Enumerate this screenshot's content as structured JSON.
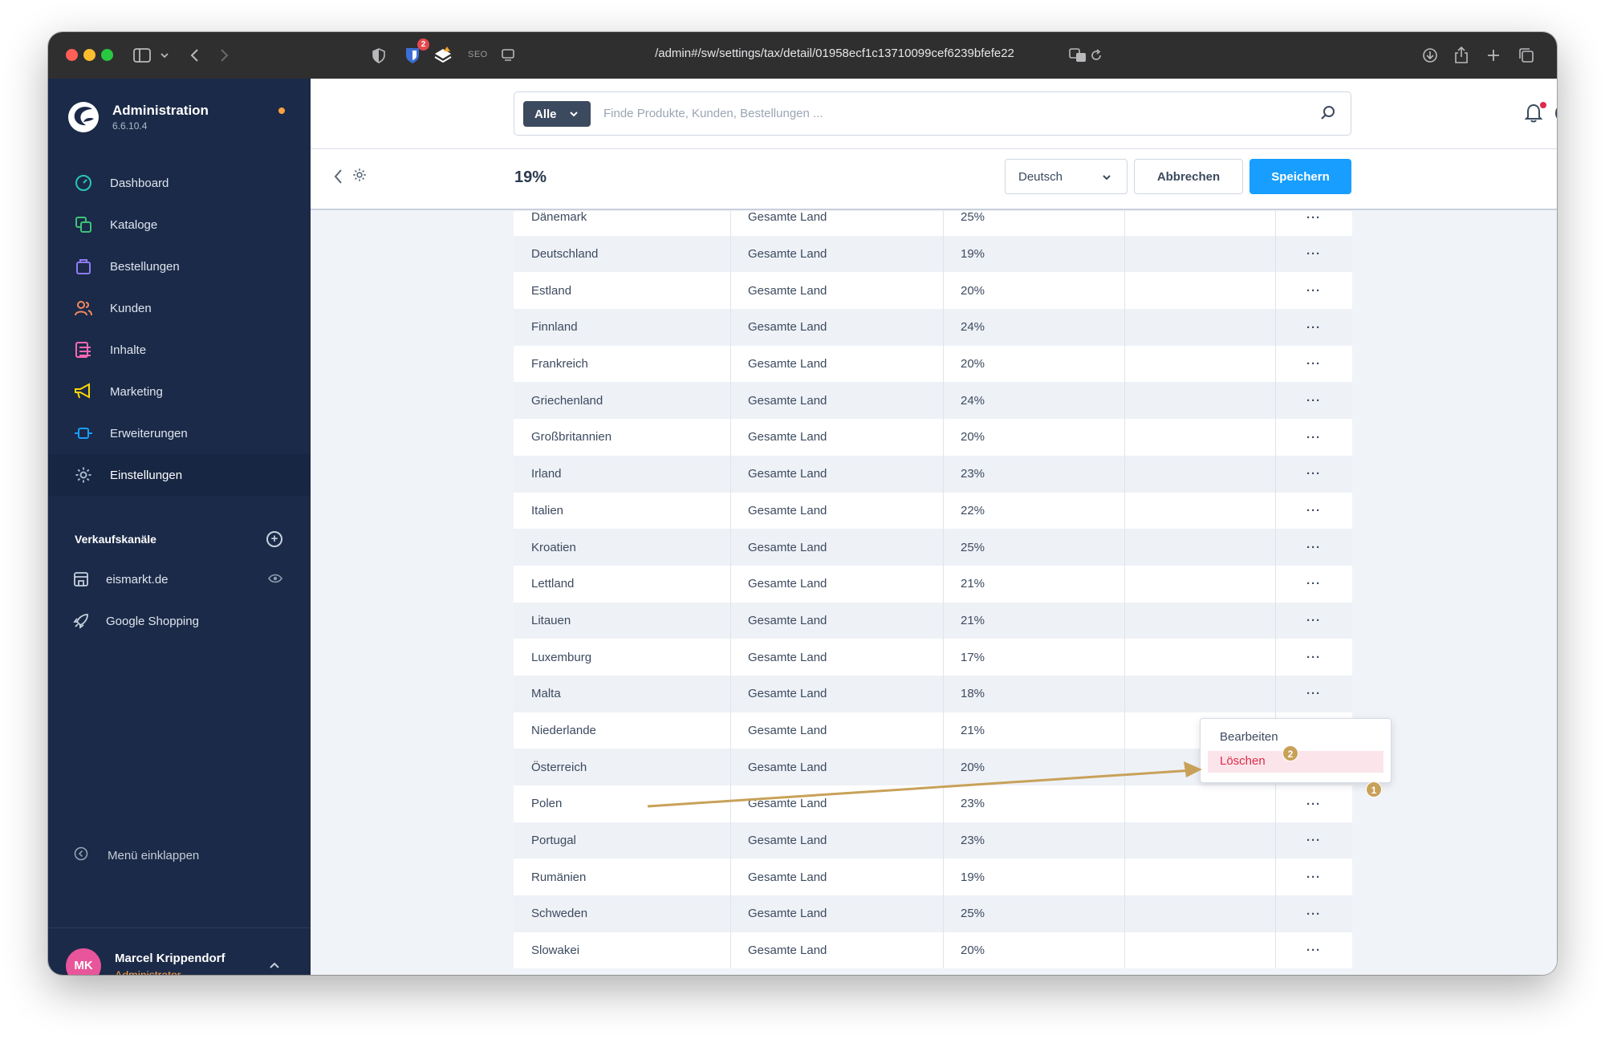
{
  "browser": {
    "url": "/admin#/sw/settings/tax/detail/01958ecf1c13710099cef6239bfefe22",
    "seo_label": "SEO",
    "extension_badge": "2"
  },
  "sidebar": {
    "brand_title": "Administration",
    "brand_version": "6.6.10.4",
    "items": [
      {
        "label": "Dashboard",
        "icon": "dashboard-icon"
      },
      {
        "label": "Kataloge",
        "icon": "catalog-icon"
      },
      {
        "label": "Bestellungen",
        "icon": "shopping-bag-icon"
      },
      {
        "label": "Kunden",
        "icon": "users-icon"
      },
      {
        "label": "Inhalte",
        "icon": "content-icon"
      },
      {
        "label": "Marketing",
        "icon": "megaphone-icon"
      },
      {
        "label": "Erweiterungen",
        "icon": "plug-icon"
      },
      {
        "label": "Einstellungen",
        "icon": "gear-icon",
        "active": true
      }
    ],
    "sales_channels_title": "Verkaufskanäle",
    "channels": [
      {
        "label": "eismarkt.de",
        "icon": "storefront-icon"
      },
      {
        "label": "Google Shopping",
        "icon": "rocket-icon"
      }
    ],
    "collapse_label": "Menü einklappen",
    "user": {
      "initials": "MK",
      "name": "Marcel Krippendorf",
      "role": "Administrator"
    }
  },
  "header": {
    "search_type": "Alle",
    "search_placeholder": "Finde Produkte, Kunden, Bestellungen ..."
  },
  "smartbar": {
    "title": "19%",
    "language": "Deutsch",
    "cancel_label": "Abbrechen",
    "save_label": "Speichern"
  },
  "tax_rules": [
    {
      "country": "Dänemark",
      "area": "Gesamte Land",
      "rate": "25%"
    },
    {
      "country": "Deutschland",
      "area": "Gesamte Land",
      "rate": "19%"
    },
    {
      "country": "Estland",
      "area": "Gesamte Land",
      "rate": "20%"
    },
    {
      "country": "Finnland",
      "area": "Gesamte Land",
      "rate": "24%"
    },
    {
      "country": "Frankreich",
      "area": "Gesamte Land",
      "rate": "20%"
    },
    {
      "country": "Griechenland",
      "area": "Gesamte Land",
      "rate": "24%"
    },
    {
      "country": "Großbritannien",
      "area": "Gesamte Land",
      "rate": "20%"
    },
    {
      "country": "Irland",
      "area": "Gesamte Land",
      "rate": "23%"
    },
    {
      "country": "Italien",
      "area": "Gesamte Land",
      "rate": "22%"
    },
    {
      "country": "Kroatien",
      "area": "Gesamte Land",
      "rate": "25%"
    },
    {
      "country": "Lettland",
      "area": "Gesamte Land",
      "rate": "21%"
    },
    {
      "country": "Litauen",
      "area": "Gesamte Land",
      "rate": "21%"
    },
    {
      "country": "Luxemburg",
      "area": "Gesamte Land",
      "rate": "17%"
    },
    {
      "country": "Malta",
      "area": "Gesamte Land",
      "rate": "18%"
    },
    {
      "country": "Niederlande",
      "area": "Gesamte Land",
      "rate": "21%"
    },
    {
      "country": "Österreich",
      "area": "Gesamte Land",
      "rate": "20%",
      "menu_open": true
    },
    {
      "country": "Polen",
      "area": "Gesamte Land",
      "rate": "23%"
    },
    {
      "country": "Portugal",
      "area": "Gesamte Land",
      "rate": "23%"
    },
    {
      "country": "Rumänien",
      "area": "Gesamte Land",
      "rate": "19%"
    },
    {
      "country": "Schweden",
      "area": "Gesamte Land",
      "rate": "25%"
    },
    {
      "country": "Slowakei",
      "area": "Gesamte Land",
      "rate": "20%"
    }
  ],
  "row_action_label": "···",
  "context_menu": {
    "edit_label": "Bearbeiten",
    "delete_label": "Löschen"
  },
  "annotations": {
    "step_1": "1",
    "step_2": "2",
    "color": "#c8a159"
  },
  "colors": {
    "sidebar_bg": "#1b2a48",
    "accent": "#189eff",
    "danger": "#de294c",
    "user_role": "#ff9f43"
  }
}
